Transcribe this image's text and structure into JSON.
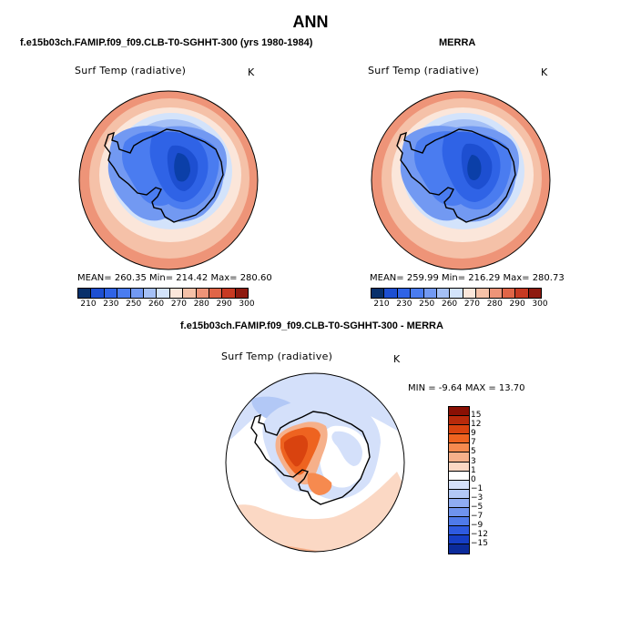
{
  "title": "ANN",
  "colors": {
    "abs_scale": [
      "#08306b",
      "#1d4fd1",
      "#2f63e6",
      "#4a7cf0",
      "#7299f2",
      "#a5c0f6",
      "#d3e3fb",
      "#fbe6da",
      "#f5c1a8",
      "#ee9478",
      "#e06547",
      "#c73a22",
      "#8e1a0f"
    ],
    "diff_scale": [
      "#8a1004",
      "#b82a0b",
      "#d9430f",
      "#ee6320",
      "#f68a4f",
      "#f6b08a",
      "#fbd8c4",
      "#ffffff",
      "#d4e0fa",
      "#b2c8f6",
      "#8facf2",
      "#6f93ee",
      "#4f7aea",
      "#2e5ae0",
      "#163ec6",
      "#0b2b9b"
    ]
  },
  "chart_data": [
    {
      "type": "heatmap",
      "panel_title": "f.e15b03ch.FAMIP.f09_f09.CLB-T0-SGHHT-300 (yrs 1980-1984)",
      "variable": "Surf Temp (radiative)",
      "units": "K",
      "projection": "polar stereographic (south pole)",
      "stats": {
        "mean": "260.35",
        "min": "214.42",
        "max": "280.60"
      },
      "stats_text": "MEAN= 260.35   Min= 214.42   Max= 280.60",
      "colorbar_levels": [
        210,
        220,
        230,
        240,
        250,
        260,
        265,
        270,
        275,
        280,
        285,
        290,
        300
      ],
      "colorbar_ticks": [
        "210",
        "230",
        "250",
        "260",
        "270",
        "280",
        "290",
        "300"
      ]
    },
    {
      "type": "heatmap",
      "panel_title": "MERRA",
      "variable": "Surf Temp (radiative)",
      "units": "K",
      "projection": "polar stereographic (south pole)",
      "stats": {
        "mean": "259.99",
        "min": "216.29",
        "max": "280.73"
      },
      "stats_text": "MEAN= 259.99   Min= 216.29   Max= 280.73",
      "colorbar_levels": [
        210,
        220,
        230,
        240,
        250,
        260,
        265,
        270,
        275,
        280,
        285,
        290,
        300
      ],
      "colorbar_ticks": [
        "210",
        "230",
        "250",
        "260",
        "270",
        "280",
        "290",
        "300"
      ]
    },
    {
      "type": "heatmap",
      "panel_title": "f.e15b03ch.FAMIP.f09_f09.CLB-T0-SGHHT-300 - MERRA",
      "variable": "Surf Temp (radiative)",
      "units": "K",
      "projection": "polar stereographic (south pole)",
      "stats": {
        "min": "-9.64",
        "max": "13.70"
      },
      "stats_text": "MIN =   -9.64  MAX =  13.70",
      "colorbar_levels": [
        15,
        12,
        9,
        7,
        5,
        3,
        1,
        0,
        -1,
        -3,
        -5,
        -7,
        -9,
        -12,
        -15
      ],
      "colorbar_ticks": [
        "15",
        "12",
        "9",
        "7",
        "5",
        "3",
        "1",
        "0",
        "−1",
        "−3",
        "−5",
        "−7",
        "−9",
        "−12",
        "−15"
      ]
    }
  ]
}
